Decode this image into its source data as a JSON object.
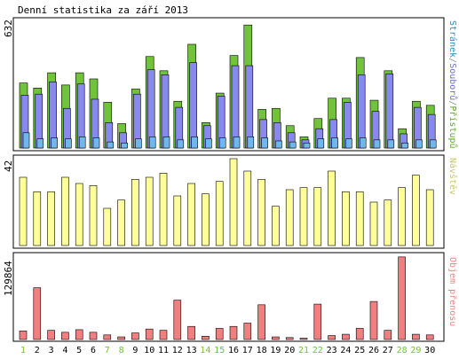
{
  "chart_data": [
    {
      "type": "bar",
      "title": "Denní statistika za září 2013",
      "ymax_label": "632",
      "ylim": [
        0,
        632
      ],
      "legend_label": "Stránek/Souborů/Přístupů",
      "legend_parts": [
        {
          "text": "Stránek",
          "color": "#1e90c8"
        },
        {
          "text": "/",
          "color": "#888888"
        },
        {
          "text": "Souborů",
          "color": "#6a6ae6"
        },
        {
          "text": "/",
          "color": "#888888"
        },
        {
          "text": "Přístupů",
          "color": "#5cad1a"
        }
      ],
      "categories": [
        "1",
        "2",
        "3",
        "4",
        "5",
        "6",
        "7",
        "8",
        "9",
        "10",
        "11",
        "12",
        "13",
        "14",
        "15",
        "16",
        "17",
        "18",
        "19",
        "20",
        "21",
        "22",
        "23",
        "24",
        "25",
        "26",
        "27",
        "28",
        "29",
        "30"
      ],
      "series": [
        {
          "name": "Přístupů",
          "color": "#70c33a",
          "values": [
            320,
            295,
            370,
            310,
            370,
            340,
            225,
            120,
            290,
            450,
            380,
            230,
            510,
            125,
            270,
            455,
            605,
            190,
            195,
            110,
            55,
            145,
            245,
            245,
            445,
            235,
            380,
            95,
            230,
            210
          ]
        },
        {
          "name": "Souborů",
          "color": "#8888ee",
          "values": [
            260,
            265,
            325,
            195,
            315,
            240,
            125,
            75,
            265,
            385,
            360,
            200,
            420,
            110,
            255,
            405,
            405,
            140,
            125,
            75,
            40,
            95,
            140,
            225,
            360,
            180,
            365,
            70,
            200,
            165
          ]
        },
        {
          "name": "Stránek",
          "color": "#6fb8ee",
          "values": [
            75,
            45,
            50,
            45,
            55,
            50,
            30,
            25,
            45,
            55,
            55,
            40,
            55,
            45,
            50,
            55,
            55,
            50,
            35,
            30,
            25,
            45,
            50,
            45,
            50,
            40,
            40,
            25,
            40,
            40
          ]
        }
      ],
      "weekend_categories": [
        "1",
        "7",
        "8",
        "14",
        "15",
        "21",
        "22",
        "28",
        "29"
      ]
    },
    {
      "type": "bar",
      "ymax_label": "42",
      "ylim": [
        0,
        42
      ],
      "legend_label": "Návštěv",
      "categories": [
        "1",
        "2",
        "3",
        "4",
        "5",
        "6",
        "7",
        "8",
        "9",
        "10",
        "11",
        "12",
        "13",
        "14",
        "15",
        "16",
        "17",
        "18",
        "19",
        "20",
        "21",
        "22",
        "23",
        "24",
        "25",
        "26",
        "27",
        "28",
        "29",
        "30"
      ],
      "series": [
        {
          "name": "Návštěv",
          "color": "#ffff99",
          "values": [
            33,
            26,
            26,
            33,
            30,
            29,
            18,
            22,
            32,
            33,
            35,
            24,
            30,
            25,
            31,
            42,
            36,
            32,
            19,
            27,
            28,
            28,
            36,
            26,
            26,
            21,
            22,
            28,
            34,
            27
          ]
        }
      ]
    },
    {
      "type": "bar",
      "ymax_label": "129864",
      "ylim": [
        0,
        129864
      ],
      "legend_label": "Objem přenosu",
      "categories": [
        "1",
        "2",
        "3",
        "4",
        "5",
        "6",
        "7",
        "8",
        "9",
        "10",
        "11",
        "12",
        "13",
        "14",
        "15",
        "16",
        "17",
        "18",
        "19",
        "20",
        "21",
        "22",
        "23",
        "24",
        "25",
        "26",
        "27",
        "28",
        "29",
        "30"
      ],
      "series": [
        {
          "name": "Objem přenosu",
          "color": "#f08080",
          "values": [
            13000,
            79000,
            14000,
            11000,
            15000,
            11000,
            7000,
            4000,
            10000,
            16000,
            14000,
            60000,
            20000,
            5000,
            17000,
            20000,
            25000,
            53000,
            4000,
            3000,
            2000,
            54000,
            6000,
            8000,
            17000,
            58000,
            14000,
            126000,
            8000,
            7000
          ]
        }
      ]
    }
  ]
}
